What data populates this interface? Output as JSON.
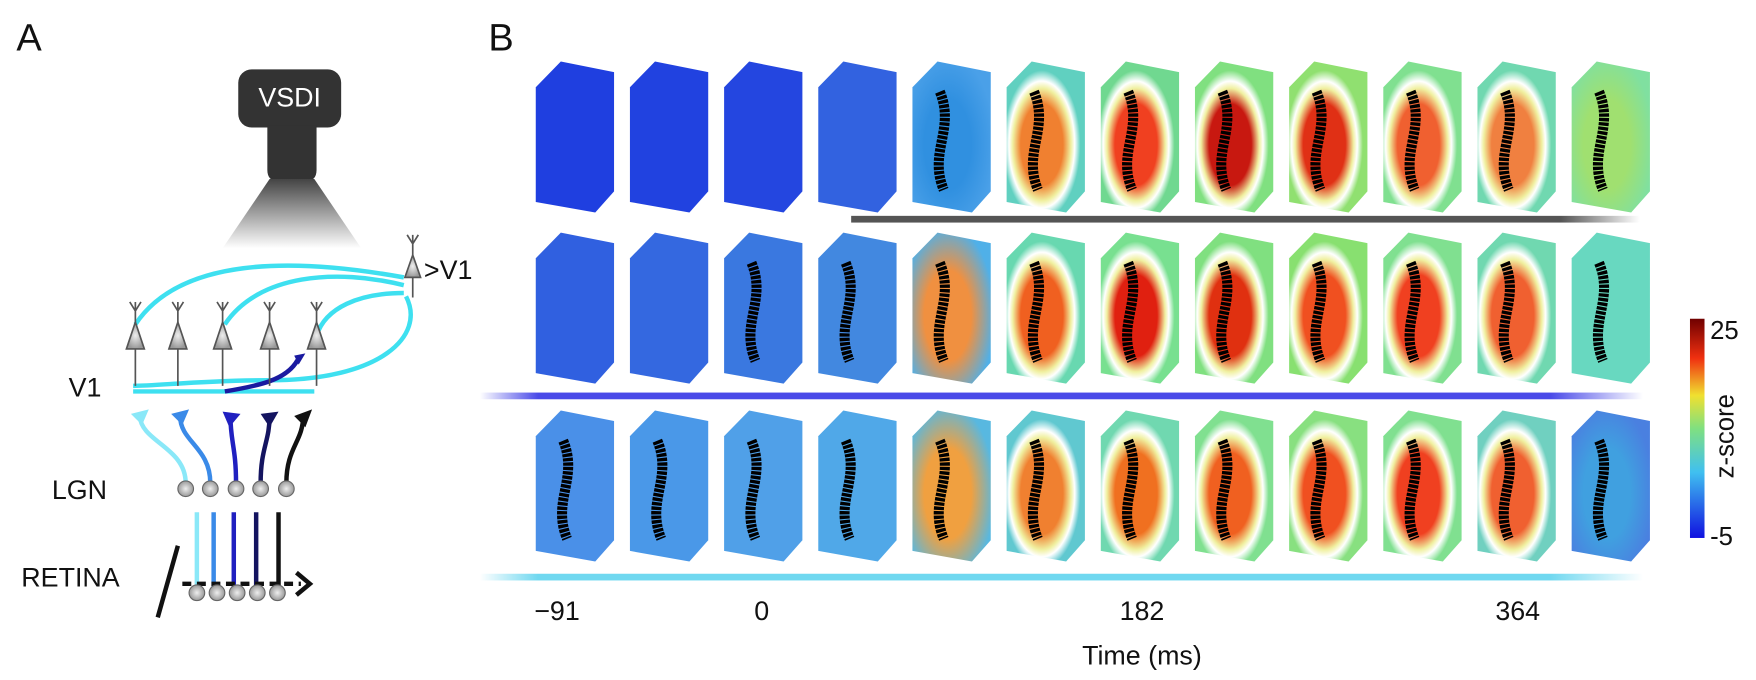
{
  "panel_a": {
    "label": "A",
    "camera": "VSDI",
    "higher_area": ">V1",
    "layers": {
      "v1": "V1",
      "lgn": "LGN",
      "retina": "RETINA"
    }
  },
  "panel_b": {
    "label": "B",
    "time_labels": [
      "−91",
      "0",
      "182",
      "364"
    ],
    "x_label": "Time (ms)",
    "colorbar": {
      "top": "25",
      "bottom": "-5",
      "label": "z-score"
    }
  }
}
